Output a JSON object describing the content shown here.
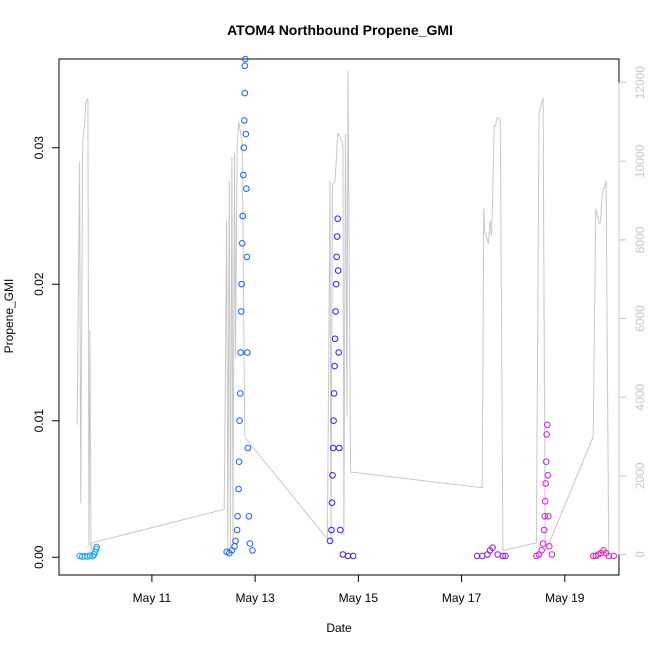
{
  "chart_data": {
    "type": "scatter",
    "title": "ATOM4 Northbound Propene_GMI",
    "xlabel": "Date",
    "ylabel": "Propene_GMI",
    "x_ticks": [
      "May 11",
      "May 13",
      "May 15",
      "May 17",
      "May 19"
    ],
    "x_tick_values": [
      11,
      13,
      15,
      17,
      19
    ],
    "xlim": [
      9.2,
      20.05
    ],
    "ylim": [
      -0.0013,
      0.0365
    ],
    "y_ticks": [
      "0.00",
      "0.01",
      "0.02",
      "0.03"
    ],
    "y_tick_values": [
      0,
      0.01,
      0.02,
      0.03
    ],
    "y2lim": [
      -520,
      12600
    ],
    "y2_ticks": [
      "0",
      "2000",
      "4000",
      "6000",
      "8000",
      "10000",
      "12000"
    ],
    "y2_tick_values": [
      0,
      2000,
      4000,
      6000,
      8000,
      10000,
      12000
    ],
    "grid": false,
    "series": [
      {
        "color": "#19a7f0",
        "points": [
          [
            9.6,
            0.0001
          ],
          [
            9.65,
            5e-05
          ],
          [
            9.7,
            8e-05
          ],
          [
            9.75,
            5e-05
          ],
          [
            9.8,
            0.00012
          ],
          [
            9.85,
            8e-05
          ],
          [
            9.88,
            0.0002
          ],
          [
            9.9,
            0.0004
          ],
          [
            9.92,
            0.0006
          ],
          [
            9.93,
            0.00075
          ]
        ]
      },
      {
        "color": "#1961f0",
        "points": [
          [
            12.45,
            0.0004
          ],
          [
            12.5,
            0.0003
          ],
          [
            12.55,
            0.0005
          ],
          [
            12.6,
            0.0008
          ],
          [
            12.62,
            0.0012
          ],
          [
            12.65,
            0.002
          ],
          [
            12.66,
            0.003
          ],
          [
            12.68,
            0.005
          ],
          [
            12.69,
            0.007
          ],
          [
            12.7,
            0.01
          ],
          [
            12.71,
            0.012
          ],
          [
            12.72,
            0.015
          ],
          [
            12.73,
            0.018
          ],
          [
            12.74,
            0.02
          ],
          [
            12.75,
            0.023
          ],
          [
            12.76,
            0.025
          ],
          [
            12.77,
            0.028
          ],
          [
            12.78,
            0.03
          ],
          [
            12.79,
            0.032
          ],
          [
            12.8,
            0.034
          ],
          [
            12.8,
            0.036
          ],
          [
            12.81,
            0.0365
          ],
          [
            12.82,
            0.031
          ],
          [
            12.83,
            0.027
          ],
          [
            12.84,
            0.022
          ],
          [
            12.85,
            0.015
          ],
          [
            12.86,
            0.008
          ],
          [
            12.88,
            0.003
          ],
          [
            12.9,
            0.001
          ],
          [
            12.95,
            0.0005
          ]
        ]
      },
      {
        "color": "#3919f0",
        "points": [
          [
            14.45,
            0.0012
          ],
          [
            14.48,
            0.002
          ],
          [
            14.49,
            0.004
          ],
          [
            14.5,
            0.006
          ],
          [
            14.51,
            0.008
          ],
          [
            14.52,
            0.01
          ],
          [
            14.53,
            0.012
          ],
          [
            14.54,
            0.014
          ],
          [
            14.55,
            0.016
          ],
          [
            14.56,
            0.018
          ],
          [
            14.57,
            0.02
          ],
          [
            14.58,
            0.022
          ],
          [
            14.59,
            0.0235
          ],
          [
            14.6,
            0.0248
          ],
          [
            14.61,
            0.021
          ],
          [
            14.62,
            0.015
          ],
          [
            14.63,
            0.008
          ],
          [
            14.65,
            0.002
          ],
          [
            14.7,
            0.0002
          ],
          [
            14.8,
            0.0001
          ],
          [
            14.9,
            0.0001
          ]
        ]
      },
      {
        "color": "#8719f0",
        "points": [
          [
            17.3,
            0.0001
          ],
          [
            17.4,
            0.0001
          ],
          [
            17.5,
            0.0002
          ],
          [
            17.55,
            0.0005
          ],
          [
            17.6,
            0.0007
          ],
          [
            17.7,
            0.0002
          ],
          [
            17.8,
            0.0001
          ],
          [
            17.85,
            0.0001
          ]
        ]
      },
      {
        "color": "#d619f0",
        "points": [
          [
            18.45,
            0.0001
          ],
          [
            18.5,
            0.0002
          ],
          [
            18.55,
            0.0005
          ],
          [
            18.58,
            0.001
          ],
          [
            18.6,
            0.002
          ],
          [
            18.61,
            0.003
          ],
          [
            18.62,
            0.0041
          ],
          [
            18.63,
            0.0054
          ],
          [
            18.64,
            0.007
          ],
          [
            18.65,
            0.009
          ],
          [
            18.66,
            0.0097
          ],
          [
            18.67,
            0.006
          ],
          [
            18.68,
            0.003
          ],
          [
            18.7,
            0.0008
          ],
          [
            18.75,
            0.0002
          ]
        ]
      },
      {
        "color": "#f019c0",
        "points": [
          [
            19.55,
            0.0001
          ],
          [
            19.6,
            0.0001
          ],
          [
            19.65,
            0.0002
          ],
          [
            19.7,
            0.0003
          ],
          [
            19.75,
            0.0005
          ],
          [
            19.8,
            0.0003
          ],
          [
            19.85,
            0.0001
          ],
          [
            19.95,
            0.0001
          ]
        ]
      }
    ],
    "altitude_line": {
      "color": "#c8c8c8",
      "points": [
        [
          9.55,
          3300
        ],
        [
          9.6,
          10000
        ],
        [
          9.62,
          1300
        ],
        [
          9.66,
          10500
        ],
        [
          9.7,
          11000
        ],
        [
          9.72,
          11500
        ],
        [
          9.76,
          11600
        ],
        [
          9.78,
          200
        ],
        [
          9.8,
          5700
        ],
        [
          9.82,
          100
        ],
        [
          9.84,
          300
        ],
        [
          12.4,
          1150
        ],
        [
          12.45,
          8500
        ],
        [
          12.47,
          100
        ],
        [
          12.5,
          9500
        ],
        [
          12.52,
          200
        ],
        [
          12.55,
          10100
        ],
        [
          12.57,
          200
        ],
        [
          12.6,
          10200
        ],
        [
          12.62,
          5000
        ],
        [
          12.65,
          10300
        ],
        [
          12.68,
          11000
        ],
        [
          12.75,
          10500
        ],
        [
          12.8,
          3000
        ],
        [
          12.85,
          2900
        ],
        [
          14.4,
          400
        ],
        [
          14.45,
          9500
        ],
        [
          14.47,
          300
        ],
        [
          14.5,
          9400
        ],
        [
          14.55,
          9500
        ],
        [
          14.6,
          10700
        ],
        [
          14.62,
          10700
        ],
        [
          14.65,
          10600
        ],
        [
          14.68,
          10500
        ],
        [
          14.7,
          10400
        ],
        [
          14.72,
          500
        ],
        [
          14.75,
          10700
        ],
        [
          14.78,
          3500
        ],
        [
          14.8,
          12300
        ],
        [
          14.85,
          2100
        ],
        [
          17.4,
          1700
        ],
        [
          17.43,
          8800
        ],
        [
          17.45,
          8200
        ],
        [
          17.48,
          8100
        ],
        [
          17.5,
          8000
        ],
        [
          17.52,
          7900
        ],
        [
          17.55,
          8500
        ],
        [
          17.58,
          8100
        ],
        [
          17.6,
          8900
        ],
        [
          17.63,
          10900
        ],
        [
          17.66,
          10900
        ],
        [
          17.68,
          11100
        ],
        [
          17.72,
          11100
        ],
        [
          17.75,
          11000
        ],
        [
          17.8,
          100
        ],
        [
          18.45,
          300
        ],
        [
          18.5,
          11200
        ],
        [
          18.55,
          11500
        ],
        [
          18.58,
          11600
        ],
        [
          18.62,
          100
        ],
        [
          18.65,
          200
        ],
        [
          18.7,
          300
        ],
        [
          19.55,
          3000
        ],
        [
          19.6,
          8800
        ],
        [
          19.62,
          8700
        ],
        [
          19.65,
          8500
        ],
        [
          19.68,
          8400
        ],
        [
          19.7,
          8600
        ],
        [
          19.72,
          9100
        ],
        [
          19.75,
          9300
        ],
        [
          19.78,
          9400
        ],
        [
          19.8,
          9500
        ],
        [
          19.85,
          100
        ]
      ]
    }
  }
}
